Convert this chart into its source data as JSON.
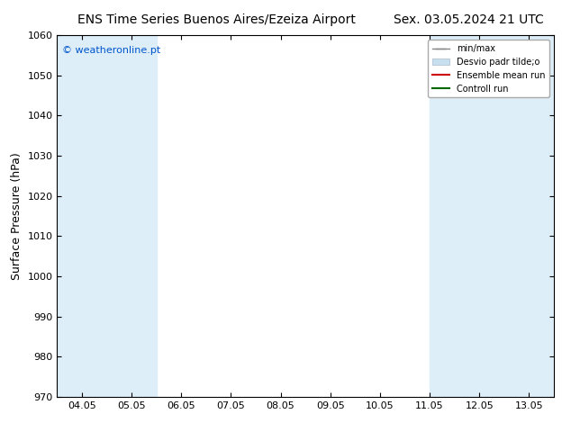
{
  "title_left": "ENS Time Series Buenos Aires/Ezeiza Airport",
  "title_right": "Sex. 03.05.2024 21 UTC",
  "ylabel": "Surface Pressure (hPa)",
  "ylim": [
    970,
    1060
  ],
  "yticks": [
    970,
    980,
    990,
    1000,
    1010,
    1020,
    1030,
    1040,
    1050,
    1060
  ],
  "xtick_labels": [
    "04.05",
    "05.05",
    "06.05",
    "07.05",
    "08.05",
    "09.05",
    "10.05",
    "11.05",
    "12.05",
    "13.05"
  ],
  "xtick_positions": [
    0,
    1,
    2,
    3,
    4,
    5,
    6,
    7,
    8,
    9
  ],
  "xlim": [
    -0.5,
    9.5
  ],
  "shaded_bands": [
    {
      "x_start": -0.5,
      "x_end": 0.5,
      "color": "#ddeef8"
    },
    {
      "x_start": 0.5,
      "x_end": 1.5,
      "color": "#ddeef8"
    },
    {
      "x_start": 7.0,
      "x_end": 8.0,
      "color": "#ddeef8"
    },
    {
      "x_start": 8.0,
      "x_end": 9.0,
      "color": "#ddeef8"
    },
    {
      "x_start": 9.0,
      "x_end": 9.5,
      "color": "#ddeef8"
    }
  ],
  "copyright_text": "© weatheronline.pt",
  "copyright_color": "#0055cc",
  "bg_color": "#ffffff",
  "title_fontsize": 10,
  "axis_label_fontsize": 9,
  "tick_fontsize": 8,
  "legend_fontsize": 7,
  "font_family": "DejaVu Sans"
}
